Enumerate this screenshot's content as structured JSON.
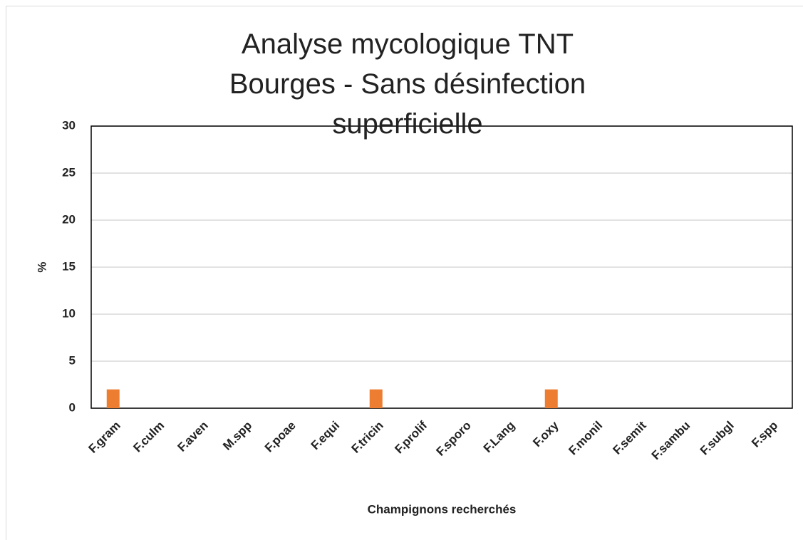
{
  "chart_data": {
    "type": "bar",
    "title": "Analyse mycologique TNT Bourges - Sans désinfection superficielle",
    "x_label": "Champignons recherchés",
    "y_label": "%",
    "categories": [
      "F.gram",
      "F.culm",
      "F.aven",
      "M.spp",
      "F.poae",
      "F.equi",
      "F.tricin",
      "F.prolif",
      "F.sporo",
      "F.Lang",
      "F.oxy",
      "F.monil",
      "F.semit",
      "F.sambu",
      "F.subgl",
      "F.spp"
    ],
    "values": [
      2,
      0,
      0,
      0,
      0,
      0,
      2,
      0,
      0,
      0,
      2,
      0,
      0,
      0,
      0,
      0
    ],
    "color": "#ed7d31",
    "ylim": [
      0,
      30
    ],
    "yticks": [
      0,
      5,
      10,
      15,
      20,
      25,
      30
    ],
    "grid": true
  }
}
